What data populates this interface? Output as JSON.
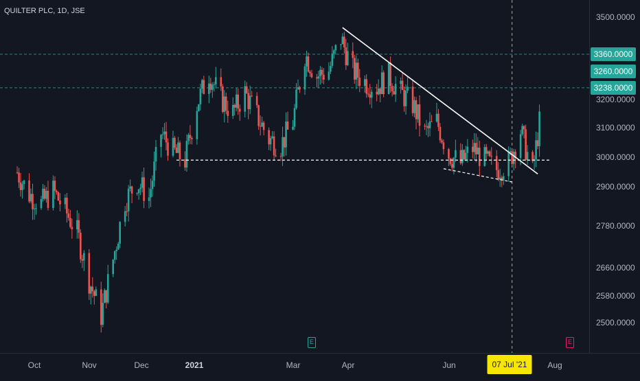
{
  "title": "QUILTER PLC, 1D, JSE",
  "colors": {
    "up": "#26a69a",
    "down": "#ef5350",
    "bg": "#131722",
    "hline": "#26a69a",
    "earnings_past": "#26a69a",
    "earnings_future": "#e91e63",
    "date_label": "#f7e600"
  },
  "chart_data": {
    "type": "candlestick",
    "title": "QUILTER PLC, 1D, JSE",
    "y_scale": "log",
    "yticks": [
      "3500.0000",
      "3200.0000",
      "3100.0000",
      "3000.0000",
      "2900.0000",
      "2780.0000",
      "2660.0000",
      "2580.0000",
      "2500.0000"
    ],
    "xticks": [
      "Oct",
      "Nov",
      "Dec",
      "2021",
      "Mar",
      "Apr",
      "Jun",
      "Aug"
    ],
    "price_labels": [
      {
        "label": "3360.0000",
        "value": 3360,
        "color": "#26a69a",
        "line": true
      },
      {
        "label": "3260.0000",
        "value": 3260,
        "color": "#26a69a",
        "line": false
      },
      {
        "label": "3238.0000",
        "value": 3238,
        "color": "#26a69a",
        "line": true
      }
    ],
    "crosshair_date": "07 Jul '21",
    "series": [
      {
        "date": "2020-09-21",
        "close": 2950
      },
      {
        "date": "2020-09-28",
        "close": 2880
      },
      {
        "date": "2020-10-05",
        "close": 2850
      },
      {
        "date": "2020-10-12",
        "close": 2890
      },
      {
        "date": "2020-10-19",
        "close": 2830
      },
      {
        "date": "2020-10-26",
        "close": 2760
      },
      {
        "date": "2020-11-02",
        "close": 2620
      },
      {
        "date": "2020-11-09",
        "close": 2520
      },
      {
        "date": "2020-11-16",
        "close": 2680
      },
      {
        "date": "2020-11-23",
        "close": 2860
      },
      {
        "date": "2020-11-30",
        "close": 2920
      },
      {
        "date": "2020-12-07",
        "close": 2870
      },
      {
        "date": "2020-12-14",
        "close": 3080
      },
      {
        "date": "2020-12-21",
        "close": 3020
      },
      {
        "date": "2020-12-28",
        "close": 2990
      },
      {
        "date": "2021-01-04",
        "close": 3180
      },
      {
        "date": "2021-01-11",
        "close": 3290
      },
      {
        "date": "2021-01-18",
        "close": 3200
      },
      {
        "date": "2021-01-25",
        "close": 3150
      },
      {
        "date": "2021-02-01",
        "close": 3220
      },
      {
        "date": "2021-02-08",
        "close": 3140
      },
      {
        "date": "2021-02-15",
        "close": 3060
      },
      {
        "date": "2021-02-22",
        "close": 3040
      },
      {
        "date": "2021-03-01",
        "close": 3120
      },
      {
        "date": "2021-03-08",
        "close": 3360
      },
      {
        "date": "2021-03-15",
        "close": 3280
      },
      {
        "date": "2021-03-22",
        "close": 3300
      },
      {
        "date": "2021-03-29",
        "close": 3420
      },
      {
        "date": "2021-04-05",
        "close": 3300
      },
      {
        "date": "2021-04-12",
        "close": 3260
      },
      {
        "date": "2021-04-19",
        "close": 3240
      },
      {
        "date": "2021-04-26",
        "close": 3280
      },
      {
        "date": "2021-05-03",
        "close": 3220
      },
      {
        "date": "2021-05-10",
        "close": 3180
      },
      {
        "date": "2021-05-17",
        "close": 3080
      },
      {
        "date": "2021-05-24",
        "close": 3120
      },
      {
        "date": "2021-05-31",
        "close": 3010
      },
      {
        "date": "2021-06-07",
        "close": 2980
      },
      {
        "date": "2021-06-14",
        "close": 3030
      },
      {
        "date": "2021-06-21",
        "close": 2990
      },
      {
        "date": "2021-06-28",
        "close": 2960
      },
      {
        "date": "2021-07-05",
        "close": 2980
      },
      {
        "date": "2021-07-12",
        "close": 3090
      },
      {
        "date": "2021-07-19",
        "close": 2950
      },
      {
        "date": "2021-07-26",
        "close": 3238
      }
    ]
  }
}
